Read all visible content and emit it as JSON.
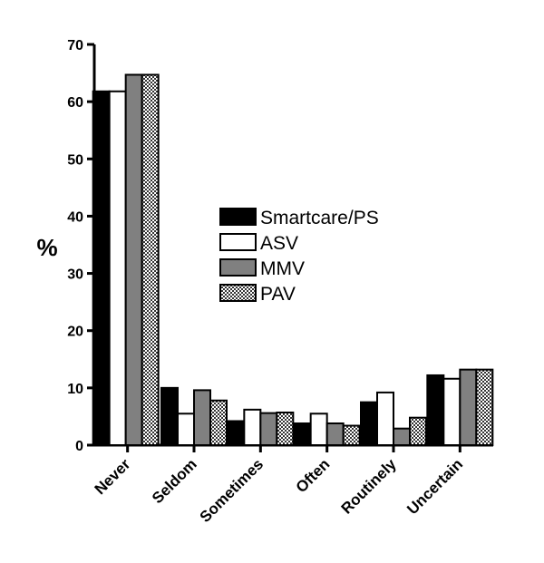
{
  "chart_data": {
    "type": "bar",
    "title": "",
    "xlabel": "",
    "ylabel": "%",
    "ylim": [
      0,
      70
    ],
    "yticks": [
      0,
      10,
      20,
      30,
      40,
      50,
      60,
      70
    ],
    "grid": false,
    "legend_position": "center",
    "categories": [
      "Never",
      "Seldom",
      "Sometimes",
      "Often",
      "Routinely",
      "Uncertain"
    ],
    "series": [
      {
        "name": "Smartcare/PS",
        "fill": "#000000",
        "values": [
          61.8,
          10.0,
          4.2,
          3.8,
          7.5,
          12.2
        ]
      },
      {
        "name": "ASV",
        "fill": "#ffffff",
        "values": [
          61.8,
          5.5,
          6.2,
          5.5,
          9.2,
          11.6
        ]
      },
      {
        "name": "MMV",
        "fill": "#808080",
        "values": [
          64.7,
          9.6,
          5.6,
          3.8,
          2.9,
          13.2
        ]
      },
      {
        "name": "PAV",
        "fill": "checkered",
        "values": [
          64.7,
          7.8,
          5.7,
          3.4,
          4.8,
          13.2
        ]
      }
    ]
  }
}
